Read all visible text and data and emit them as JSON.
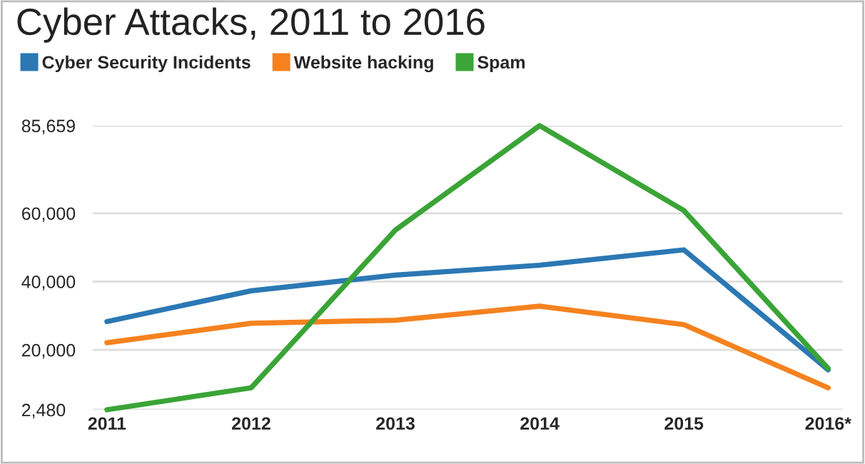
{
  "chart_data": {
    "type": "line",
    "title": "Cyber Attacks, 2011 to 2016",
    "categories": [
      "2011",
      "2012",
      "2013",
      "2014",
      "2015",
      "2016*"
    ],
    "series": [
      {
        "name": "Cyber Security Incidents",
        "color": "#2b78b4",
        "values": [
          28300,
          37300,
          41900,
          44800,
          49300,
          14200
        ]
      },
      {
        "name": "Website hacking",
        "color": "#f5821f",
        "values": [
          22100,
          27800,
          28700,
          32800,
          27400,
          8900
        ]
      },
      {
        "name": "Spam",
        "color": "#3aa436",
        "values": [
          2480,
          8900,
          55100,
          85659,
          60800,
          14600
        ]
      }
    ],
    "ylim": [
      2480,
      85659
    ],
    "yticks": [
      {
        "value": 2480,
        "label": "2,480"
      },
      {
        "value": 20000,
        "label": "20,000"
      },
      {
        "value": 40000,
        "label": "40,000"
      },
      {
        "value": 60000,
        "label": "60,000"
      },
      {
        "value": 85659,
        "label": "85,659"
      }
    ],
    "grid": "y",
    "legend": "top left",
    "marker": "none",
    "line_style": "solid"
  }
}
